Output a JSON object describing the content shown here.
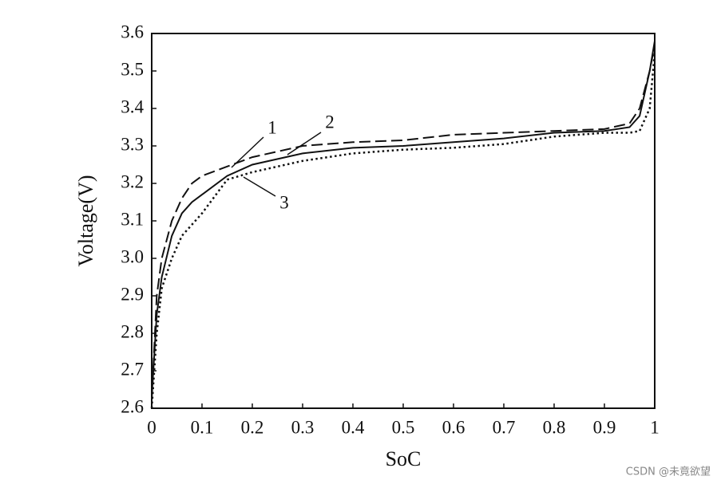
{
  "chart_data": {
    "type": "line",
    "xlabel": "SoC",
    "ylabel": "Voltage(V)",
    "x": [
      0,
      0.01,
      0.02,
      0.04,
      0.06,
      0.08,
      0.1,
      0.15,
      0.2,
      0.3,
      0.4,
      0.5,
      0.6,
      0.7,
      0.8,
      0.9,
      0.95,
      0.97,
      0.99,
      1.0
    ],
    "series": [
      {
        "name": "1",
        "color": "#111111",
        "dash": "solid",
        "values": [
          2.63,
          2.85,
          2.95,
          3.06,
          3.12,
          3.15,
          3.17,
          3.22,
          3.25,
          3.28,
          3.295,
          3.3,
          3.31,
          3.32,
          3.335,
          3.34,
          3.35,
          3.38,
          3.5,
          3.58
        ]
      },
      {
        "name": "2",
        "color": "#111111",
        "dash": "dashed",
        "values": [
          2.62,
          2.9,
          3.0,
          3.1,
          3.16,
          3.2,
          3.22,
          3.245,
          3.27,
          3.3,
          3.31,
          3.315,
          3.33,
          3.335,
          3.34,
          3.345,
          3.36,
          3.4,
          3.5,
          3.57
        ]
      },
      {
        "name": "3",
        "color": "#111111",
        "dash": "dotted",
        "values": [
          2.6,
          2.8,
          2.92,
          3.0,
          3.06,
          3.09,
          3.12,
          3.21,
          3.23,
          3.26,
          3.28,
          3.29,
          3.295,
          3.305,
          3.325,
          3.335,
          3.335,
          3.34,
          3.4,
          3.55
        ]
      }
    ],
    "xlim": [
      0,
      1
    ],
    "xticks": [
      0,
      0.1,
      0.2,
      0.3,
      0.4,
      0.5,
      0.6,
      0.7,
      0.8,
      0.9,
      1
    ],
    "ylim": [
      2.6,
      3.6
    ],
    "yticks": [
      2.6,
      2.7,
      2.8,
      2.9,
      {
        "value": 3,
        "label": "3.0"
      },
      3.1,
      3.2,
      3.3,
      3.4,
      3.5,
      3.6
    ],
    "grid": false,
    "watermark": "CSDN @未竟欲望"
  }
}
